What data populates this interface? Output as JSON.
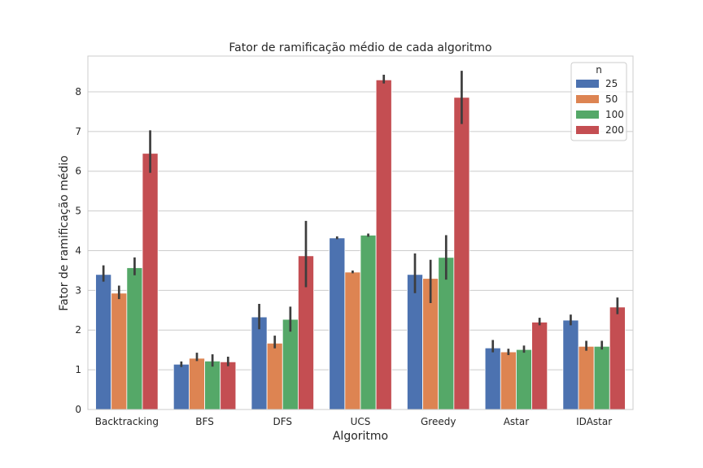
{
  "chart_data": {
    "type": "bar",
    "title": "Fator de ramificação médio de cada algoritmo",
    "xlabel": "Algoritmo",
    "ylabel": "Fator de ramificação médio",
    "categories": [
      "Backtracking",
      "BFS",
      "DFS",
      "UCS",
      "Greedy",
      "Astar",
      "IDAstar"
    ],
    "ylim": [
      0,
      8.9
    ],
    "yticks": [
      "0",
      "1",
      "2",
      "3",
      "4",
      "5",
      "6",
      "7",
      "8"
    ],
    "grid": true,
    "legend": {
      "title": "n",
      "position": "top-right"
    },
    "series": [
      {
        "name": "25",
        "color": "#4c72b0",
        "values": [
          3.4,
          1.14,
          2.33,
          4.32,
          3.4,
          1.55,
          2.25
        ],
        "err_low": [
          3.22,
          1.07,
          2.02,
          4.29,
          2.93,
          1.44,
          2.12
        ],
        "err_high": [
          3.63,
          1.21,
          2.66,
          4.36,
          3.93,
          1.75,
          2.39
        ]
      },
      {
        "name": "50",
        "color": "#dd8452",
        "values": [
          2.93,
          1.29,
          1.67,
          3.46,
          3.3,
          1.45,
          1.59
        ],
        "err_low": [
          2.78,
          1.22,
          1.54,
          3.43,
          2.68,
          1.37,
          1.48
        ],
        "err_high": [
          3.12,
          1.43,
          1.86,
          3.5,
          3.77,
          1.53,
          1.73
        ]
      },
      {
        "name": "100",
        "color": "#55a868",
        "values": [
          3.57,
          1.22,
          2.27,
          4.39,
          3.83,
          1.51,
          1.59
        ],
        "err_low": [
          3.38,
          1.08,
          1.96,
          4.35,
          3.27,
          1.43,
          1.51
        ],
        "err_high": [
          3.83,
          1.39,
          2.59,
          4.43,
          4.39,
          1.61,
          1.73
        ]
      },
      {
        "name": "200",
        "color": "#c44e52",
        "values": [
          6.45,
          1.2,
          3.87,
          8.3,
          7.86,
          2.2,
          2.58
        ],
        "err_low": [
          5.96,
          1.09,
          3.08,
          8.21,
          7.19,
          2.12,
          2.4
        ],
        "err_high": [
          7.03,
          1.33,
          4.75,
          8.43,
          8.53,
          2.31,
          2.82
        ]
      }
    ]
  }
}
